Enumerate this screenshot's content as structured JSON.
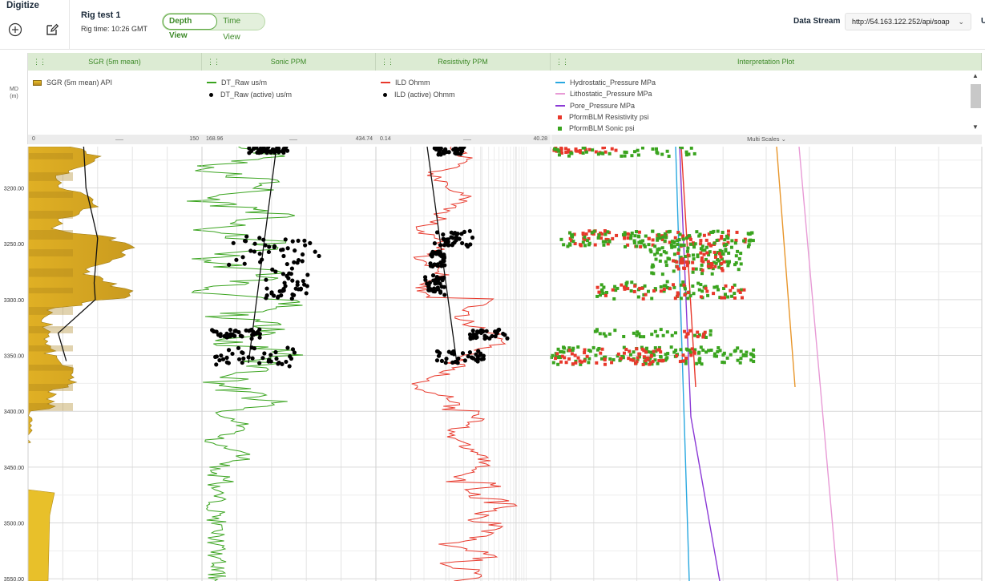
{
  "app": {
    "title": "Digitize"
  },
  "toolbar": {
    "add_icon": "plus-circle-icon",
    "edit_icon": "edit-icon"
  },
  "rig": {
    "name": "Rig test 1",
    "time": "Rig time: 10:26 GMT"
  },
  "view_toggle": {
    "depth_label": "Depth View",
    "time_label": "Time View",
    "active": "depth"
  },
  "data_stream": {
    "label": "Data Stream",
    "value": "http://54.163.122.252/api/soap",
    "user_initial": "U"
  },
  "md_header": {
    "label_line1": "MD",
    "label_line2": "(m)"
  },
  "tracks": [
    {
      "title": "SGR (5m mean)",
      "legend": [
        {
          "label": "SGR (5m mean) API",
          "color": "#e8c02a",
          "kind": "box"
        }
      ],
      "scale_min": "0",
      "scale_max": "150"
    },
    {
      "title": "Sonic PPM",
      "legend": [
        {
          "label": "DT_Raw us/m",
          "color": "#3aa41f",
          "kind": "line"
        },
        {
          "label": "DT_Raw (active) us/m",
          "color": "#000000",
          "kind": "dot"
        }
      ],
      "scale_min": "168.96",
      "scale_max": "434.74"
    },
    {
      "title": "Resistivity PPM",
      "legend": [
        {
          "label": "ILD Ohmm",
          "color": "#e8382b",
          "kind": "line"
        },
        {
          "label": "ILD (active) Ohmm",
          "color": "#000000",
          "kind": "dot"
        }
      ],
      "scale_min": "0.14",
      "scale_max": "40.28"
    },
    {
      "title": "Interpretation Plot",
      "legend": [
        {
          "label": "Hydrostatic_Pressure MPa",
          "color": "#29a8e0",
          "kind": "line"
        },
        {
          "label": "Lithostatic_Pressure MPa",
          "color": "#e89bd6",
          "kind": "line"
        },
        {
          "label": "Pore_Pressure MPa",
          "color": "#8b3ad6",
          "kind": "line"
        },
        {
          "label": "PformBLM Resistivity psi",
          "color": "#e8382b",
          "kind": "square"
        },
        {
          "label": "PformBLM Sonic psi",
          "color": "#3aa41f",
          "kind": "square"
        }
      ],
      "multi_scales_label": "Multi Scales"
    }
  ],
  "depth_axis": {
    "labels": [
      "3200.00",
      "3250.00",
      "3300.00",
      "3350.00",
      "3400.00",
      "3450.00",
      "3500.00",
      "3550.00"
    ]
  },
  "chart_data": {
    "type": "line",
    "title": "",
    "y_axis": "MD (m)",
    "ylim": [
      3163,
      3552
    ],
    "tracks": [
      {
        "name": "SGR (5m mean)",
        "xlim": [
          0,
          150
        ],
        "series": [
          {
            "name": "SGR (5m mean) API",
            "y": [
              3163,
              3200,
              3245,
              3285,
              3300,
              3330,
              3355
            ],
            "x": [
              48,
              50,
              60,
              57,
              58,
              26,
              33
            ]
          }
        ]
      },
      {
        "name": "Sonic PPM",
        "xlim": [
          168.96,
          434.74
        ]
      },
      {
        "name": "Resistivity PPM",
        "xlim": [
          0.14,
          40.28
        ]
      },
      {
        "name": "Interpretation Plot",
        "series": [
          {
            "name": "Hydrostatic_Pressure MPa"
          },
          {
            "name": "Lithostatic_Pressure MPa"
          },
          {
            "name": "Pore_Pressure MPa"
          },
          {
            "name": "PformBLM Resistivity psi"
          },
          {
            "name": "PformBLM Sonic psi"
          }
        ]
      }
    ]
  }
}
